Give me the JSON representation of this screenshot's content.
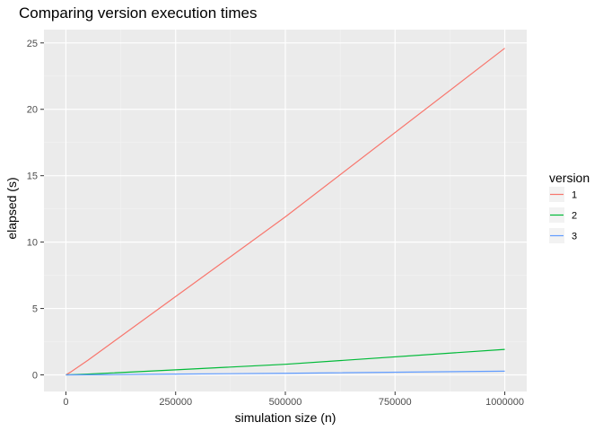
{
  "chart_data": {
    "type": "line",
    "title": "Comparing version execution times",
    "xlabel": "simulation size (n)",
    "ylabel": "elapsed (s)",
    "xlim": [
      -50000,
      1050000
    ],
    "ylim": [
      -1.25,
      26.0
    ],
    "x_ticks": [
      0,
      250000,
      500000,
      750000,
      1000000
    ],
    "x_tick_labels": [
      "0",
      "250000",
      "500000",
      "750000",
      "1000000"
    ],
    "y_ticks": [
      0,
      5,
      10,
      15,
      20,
      25
    ],
    "y_tick_labels": [
      "0",
      "5",
      "10",
      "15",
      "20",
      "25"
    ],
    "grid": true,
    "legend": {
      "title": "version",
      "placement": "right"
    },
    "series": [
      {
        "name": "1",
        "color": "#F8766D",
        "x": [
          0,
          10000,
          50000,
          100000,
          250000,
          500000,
          1000000
        ],
        "y": [
          0.0,
          0.2,
          1.1,
          2.3,
          5.9,
          11.9,
          24.6
        ]
      },
      {
        "name": "2",
        "color": "#00BA38",
        "x": [
          0,
          10000,
          50000,
          100000,
          250000,
          500000,
          1000000
        ],
        "y": [
          0.0,
          0.01,
          0.06,
          0.14,
          0.38,
          0.8,
          1.92
        ]
      },
      {
        "name": "3",
        "color": "#619CFF",
        "x": [
          0,
          10000,
          50000,
          100000,
          250000,
          500000,
          1000000
        ],
        "y": [
          0.0,
          0.0,
          0.01,
          0.02,
          0.06,
          0.12,
          0.28
        ]
      }
    ]
  }
}
